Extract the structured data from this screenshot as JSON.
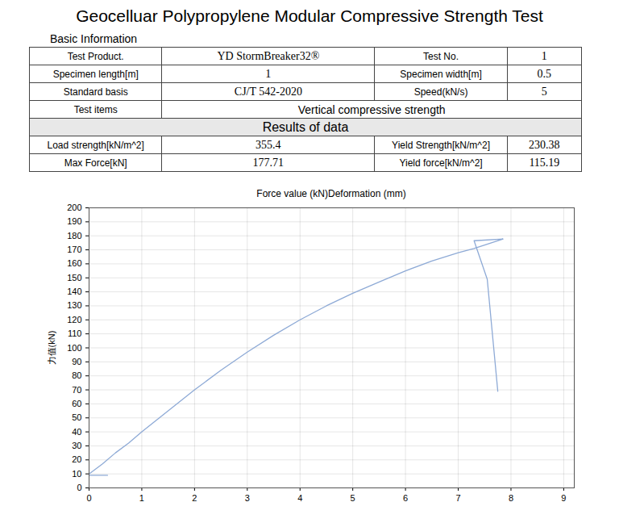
{
  "header": {
    "title": "Geocelluar Polypropylene Modular Compressive Strength Test",
    "section": "Basic Information"
  },
  "table": {
    "rows": [
      [
        "Test Product.",
        "YD StormBreaker32®",
        "Test No.",
        "1"
      ],
      [
        "Specimen length[m]",
        "1",
        "Specimen width[m]",
        "0.5"
      ],
      [
        "Standard basis",
        "CJ/T 542-2020",
        "Speed(kN/s)",
        "5"
      ],
      [
        "Test items",
        "Vertical compressive strength"
      ]
    ],
    "results_title": "Results of data",
    "results": [
      [
        "Load strength[kN/m^2]",
        "355.4",
        "Yield Strength[kN/m^2]",
        "230.38"
      ],
      [
        "Max Force[kN]",
        "177.71",
        "Yield force[kN/m^2]",
        "115.19"
      ]
    ]
  },
  "chart_data": {
    "type": "line",
    "title": "Force value (kN)Deformation (mm)",
    "y_label": "力值(kN)",
    "x": [
      0,
      0.35,
      0.35,
      0,
      0.25,
      0.5,
      0.75,
      1,
      1.5,
      2,
      2.5,
      3,
      3.5,
      4,
      4.5,
      5,
      5.5,
      6,
      6.5,
      7,
      7.3,
      7.85,
      7.3,
      7.55,
      7.75
    ],
    "values": [
      9,
      9,
      null,
      10,
      17,
      25,
      32,
      40,
      55,
      70,
      84,
      97,
      109,
      120,
      130,
      139,
      147,
      155,
      162,
      168,
      171,
      177.71,
      176.5,
      149,
      69
    ],
    "color": "#8eaad6",
    "xlim": [
      0,
      9.2
    ],
    "xticks": [
      0,
      1,
      2,
      3,
      4,
      5,
      6,
      7,
      8,
      9
    ],
    "ylim": [
      0,
      200
    ],
    "yticks": [
      0,
      10,
      20,
      30,
      40,
      50,
      60,
      70,
      80,
      90,
      100,
      110,
      120,
      130,
      140,
      150,
      160,
      170,
      180,
      190,
      200
    ],
    "grid": true
  }
}
